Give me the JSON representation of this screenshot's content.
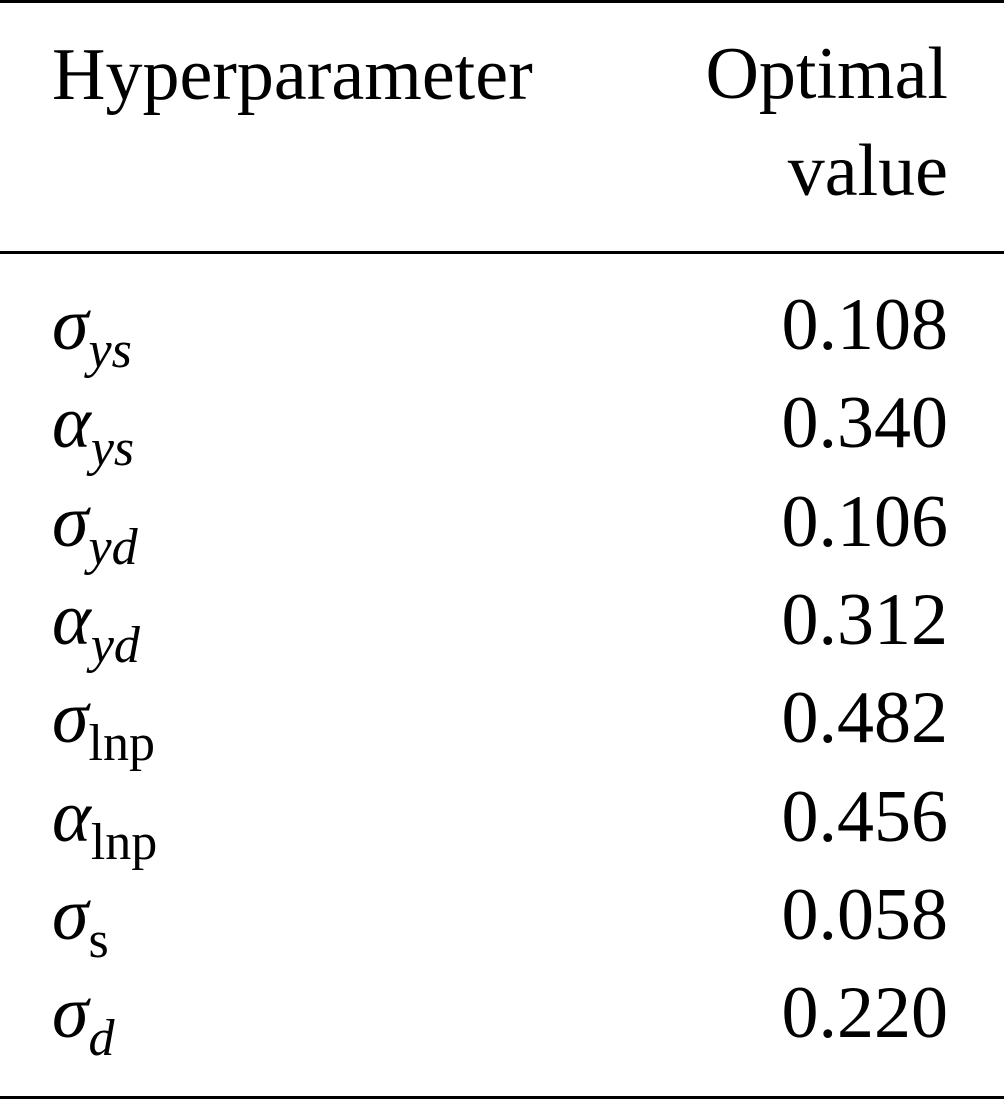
{
  "table": {
    "header": [
      "Hyperparameter",
      "Optimal value"
    ],
    "rows": [
      [
        {
          "symbol": "σ",
          "sub": "ys",
          "sub_style": "italic"
        },
        "0.108"
      ],
      [
        {
          "symbol": "α",
          "sub": "ys",
          "sub_style": "italic"
        },
        "0.340"
      ],
      [
        {
          "symbol": "σ",
          "sub": "yd",
          "sub_style": "italic"
        },
        "0.106"
      ],
      [
        {
          "symbol": "α",
          "sub": "yd",
          "sub_style": "italic"
        },
        "0.312"
      ],
      [
        {
          "symbol": "σ",
          "sub": "lnp",
          "sub_style": "upright"
        },
        "0.482"
      ],
      [
        {
          "symbol": "α",
          "sub": "lnp",
          "sub_style": "upright"
        },
        "0.456"
      ],
      [
        {
          "symbol": "σ",
          "sub": "s",
          "sub_style": "upright"
        },
        "0.058"
      ],
      [
        {
          "symbol": "σ",
          "sub": "d",
          "sub_style": "italic"
        },
        "0.220"
      ]
    ]
  }
}
